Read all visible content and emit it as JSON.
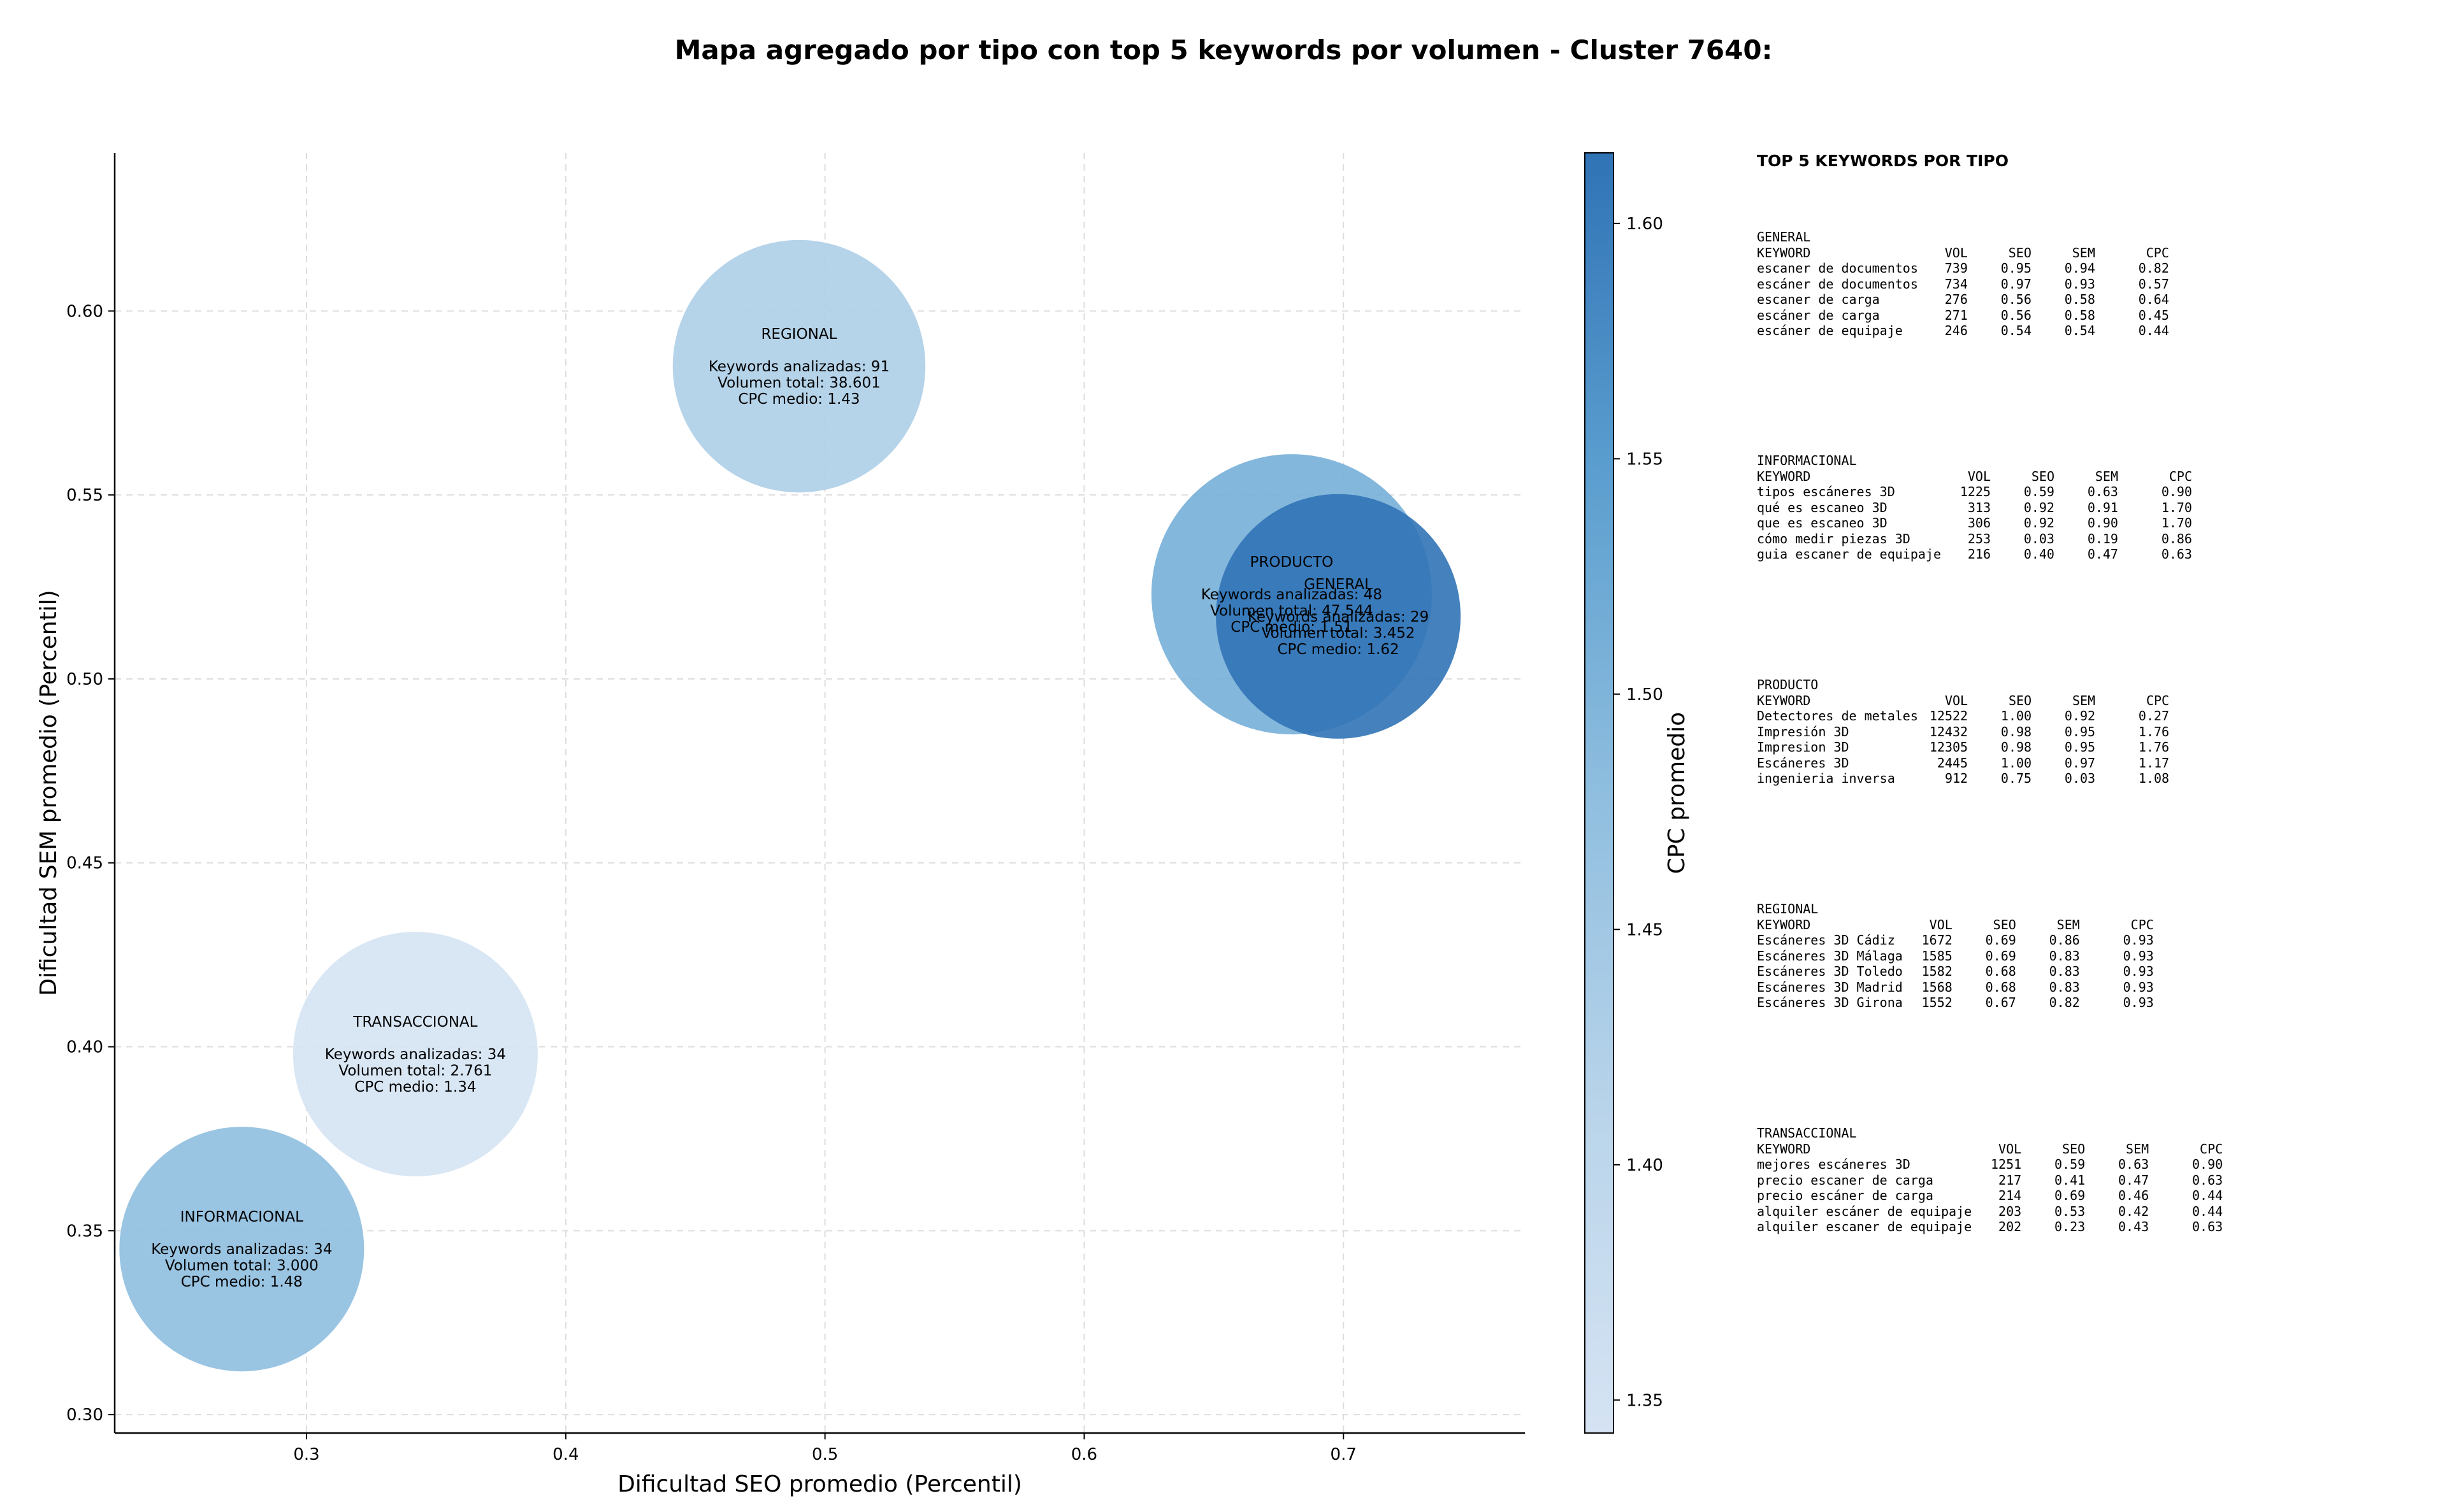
{
  "chart_data": {
    "type": "scatter",
    "title": "Mapa agregado por tipo con top 5 keywords por volumen - Cluster 7640:",
    "xlabel": "Dificultad SEO promedio (Percentil)",
    "ylabel": "Dificultad SEM promedio (Percentil)",
    "colorbar_label": "CPC promedio",
    "xlim": [
      0.226,
      0.77
    ],
    "ylim": [
      0.295,
      0.643
    ],
    "xticks": [
      "0.3",
      "0.4",
      "0.5",
      "0.6",
      "0.7"
    ],
    "yticks": [
      "0.30",
      "0.35",
      "0.40",
      "0.45",
      "0.50",
      "0.55",
      "0.60"
    ],
    "colorbar_ticks": [
      "1.35",
      "1.40",
      "1.45",
      "1.50",
      "1.55",
      "1.60"
    ],
    "colorbar_range": [
      1.343,
      1.615
    ],
    "grid": true,
    "points": [
      {
        "name": "REGIONAL",
        "x": 0.49,
        "y": 0.585,
        "cpc": 1.43,
        "volume": 38601,
        "lines": [
          "REGIONAL",
          "",
          "Keywords analizadas: 91",
          "Volumen total: 38.601",
          "CPC medio: 1.43"
        ]
      },
      {
        "name": "PRODUCTO",
        "x": 0.68,
        "y": 0.523,
        "cpc": 1.51,
        "volume": 47544,
        "lines": [
          "PRODUCTO",
          "",
          "Keywords analizadas: 48",
          "Volumen total: 47.544",
          "CPC medio: 1.51"
        ]
      },
      {
        "name": "GENERAL",
        "x": 0.698,
        "y": 0.517,
        "cpc": 1.62,
        "volume": 3452,
        "lines": [
          "GENERAL",
          "",
          "Keywords analizadas: 29",
          "Volumen total: 3.452",
          "CPC medio: 1.62"
        ]
      },
      {
        "name": "TRANSACCIONAL",
        "x": 0.342,
        "y": 0.398,
        "cpc": 1.34,
        "volume": 2761,
        "lines": [
          "TRANSACCIONAL",
          "",
          "Keywords analizadas: 34",
          "Volumen total: 2.761",
          "CPC medio: 1.34"
        ]
      },
      {
        "name": "INFORMACIONAL",
        "x": 0.275,
        "y": 0.345,
        "cpc": 1.48,
        "volume": 3000,
        "lines": [
          "INFORMACIONAL",
          "",
          "Keywords analizadas: 34",
          "Volumen total: 3.000",
          "CPC medio: 1.48"
        ]
      }
    ]
  },
  "top5": {
    "title": "TOP 5 KEYWORDS POR TIPO",
    "columns": [
      "KEYWORD",
      "VOL",
      "SEO",
      "SEM",
      "CPC"
    ],
    "groups": [
      {
        "name": "GENERAL",
        "rows": [
          [
            "escaner de documentos",
            "739",
            "0.95",
            "0.94",
            "0.82"
          ],
          [
            "escáner de documentos",
            "734",
            "0.97",
            "0.93",
            "0.57"
          ],
          [
            "escaner de carga",
            "276",
            "0.56",
            "0.58",
            "0.64"
          ],
          [
            "escáner de carga",
            "271",
            "0.56",
            "0.58",
            "0.45"
          ],
          [
            "escáner de equipaje",
            "246",
            "0.54",
            "0.54",
            "0.44"
          ]
        ]
      },
      {
        "name": "INFORMACIONAL",
        "rows": [
          [
            "tipos escáneres 3D",
            "1225",
            "0.59",
            "0.63",
            "0.90"
          ],
          [
            "qué es escaneo 3D",
            "313",
            "0.92",
            "0.91",
            "1.70"
          ],
          [
            "que es escaneo 3D",
            "306",
            "0.92",
            "0.90",
            "1.70"
          ],
          [
            "cómo medir piezas 3D",
            "253",
            "0.03",
            "0.19",
            "0.86"
          ],
          [
            "guia escaner de equipaje",
            "216",
            "0.40",
            "0.47",
            "0.63"
          ]
        ]
      },
      {
        "name": "PRODUCTO",
        "rows": [
          [
            "Detectores de metales",
            "12522",
            "1.00",
            "0.92",
            "0.27"
          ],
          [
            "Impresión 3D",
            "12432",
            "0.98",
            "0.95",
            "1.76"
          ],
          [
            "Impresion 3D",
            "12305",
            "0.98",
            "0.95",
            "1.76"
          ],
          [
            "Escáneres 3D",
            "2445",
            "1.00",
            "0.97",
            "1.17"
          ],
          [
            "ingenieria inversa",
            "912",
            "0.75",
            "0.03",
            "1.08"
          ]
        ]
      },
      {
        "name": "REGIONAL",
        "rows": [
          [
            "Escáneres 3D Cádiz",
            "1672",
            "0.69",
            "0.86",
            "0.93"
          ],
          [
            "Escáneres 3D Málaga",
            "1585",
            "0.69",
            "0.83",
            "0.93"
          ],
          [
            "Escáneres 3D Toledo",
            "1582",
            "0.68",
            "0.83",
            "0.93"
          ],
          [
            "Escáneres 3D Madrid",
            "1568",
            "0.68",
            "0.83",
            "0.93"
          ],
          [
            "Escáneres 3D Girona",
            "1552",
            "0.67",
            "0.82",
            "0.93"
          ]
        ]
      },
      {
        "name": "TRANSACCIONAL",
        "rows": [
          [
            "mejores escáneres 3D",
            "1251",
            "0.59",
            "0.63",
            "0.90"
          ],
          [
            "precio escaner de carga",
            "217",
            "0.41",
            "0.47",
            "0.63"
          ],
          [
            "precio escáner de carga",
            "214",
            "0.69",
            "0.46",
            "0.44"
          ],
          [
            "alquiler escáner de equipaje",
            "203",
            "0.53",
            "0.42",
            "0.44"
          ],
          [
            "alquiler escaner de equipaje",
            "202",
            "0.23",
            "0.43",
            "0.63"
          ]
        ]
      }
    ]
  }
}
